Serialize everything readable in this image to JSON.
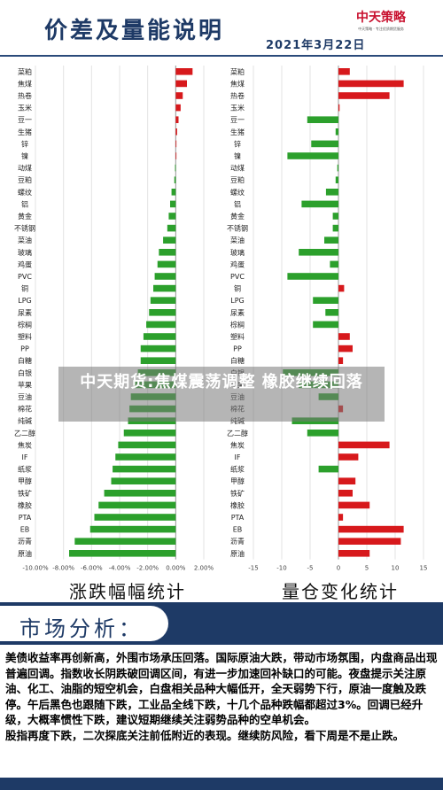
{
  "header": {
    "title": "价差及量能说明",
    "date": "2021年3月22日",
    "logo_text": "中天策略",
    "logo_sub": "中天策略 · 专注优质期货服务"
  },
  "colors": {
    "up": "#d7191c",
    "down": "#2ca02c",
    "brand": "#1e3a66"
  },
  "chart_data": [
    {
      "type": "bar",
      "orientation": "horizontal",
      "caption": "涨跌幅幅统计",
      "categories": [
        "菜粕",
        "焦煤",
        "热卷",
        "玉米",
        "豆一",
        "生猪",
        "锌",
        "镍",
        "动煤",
        "豆粕",
        "螺纹",
        "铝",
        "黄金",
        "不锈钢",
        "菜油",
        "玻璃",
        "鸡蛋",
        "PVC",
        "铜",
        "LPG",
        "尿素",
        "棕榈",
        "塑料",
        "PP",
        "白糖",
        "白银",
        "苹果",
        "豆油",
        "棉花",
        "纯碱",
        "乙二醇",
        "焦炭",
        "IF",
        "纸浆",
        "甲醇",
        "铁矿",
        "橡胶",
        "PTA",
        "EB",
        "沥青",
        "原油"
      ],
      "values": [
        1.2,
        0.8,
        0.5,
        0.35,
        0.2,
        0.1,
        0.05,
        0.0,
        -0.05,
        -0.1,
        -0.3,
        -0.4,
        -0.5,
        -0.6,
        -0.9,
        -1.2,
        -1.3,
        -1.5,
        -1.6,
        -1.8,
        -1.9,
        -2.1,
        -2.3,
        -2.5,
        -2.5,
        -2.7,
        -2.9,
        -3.2,
        -3.3,
        -3.4,
        -3.7,
        -4.1,
        -4.3,
        -4.5,
        -4.6,
        -5.1,
        -5.5,
        -5.8,
        -6.1,
        -7.2,
        -7.6
      ],
      "xlim": [
        -10,
        2
      ],
      "xticks": [
        "-10.00%",
        "-8.00%",
        "-6.00%",
        "-4.00%",
        "-2.00%",
        "0.00%",
        "2.00%"
      ],
      "xtick_values": [
        -10,
        -8,
        -6,
        -4,
        -2,
        0,
        2
      ]
    },
    {
      "type": "bar",
      "orientation": "horizontal",
      "caption": "量仓变化统计",
      "categories": [
        "菜粕",
        "焦煤",
        "热卷",
        "玉米",
        "豆一",
        "生猪",
        "锌",
        "镍",
        "动煤",
        "豆粕",
        "螺纹",
        "铝",
        "黄金",
        "不锈钢",
        "菜油",
        "玻璃",
        "鸡蛋",
        "PVC",
        "铜",
        "LPG",
        "尿素",
        "棕榈",
        "塑料",
        "PP",
        "白糖",
        "白银",
        "苹果",
        "豆油",
        "棉花",
        "纯碱",
        "乙二醇",
        "焦炭",
        "IF",
        "纸浆",
        "甲醇",
        "铁矿",
        "橡胶",
        "PTA",
        "EB",
        "沥青",
        "原油"
      ],
      "values": [
        2.0,
        11.5,
        9.0,
        0.2,
        -5.5,
        -0.5,
        -4.8,
        -9.0,
        -0.2,
        -0.5,
        -2.2,
        -6.5,
        -1.0,
        -1.0,
        -2.5,
        -7.0,
        -1.5,
        -9.0,
        1.0,
        -4.5,
        -2.3,
        -4.5,
        2.0,
        2.5,
        0.8,
        -9.8,
        -7.0,
        -3.5,
        0.8,
        -8.2,
        -5.5,
        9.0,
        3.5,
        -3.5,
        3.0,
        2.5,
        5.5,
        0.8,
        11.5,
        11.0,
        5.5
      ],
      "xlim": [
        -15,
        15
      ],
      "xticks": [
        "-15",
        "-10",
        "-5",
        "0",
        "5",
        "10",
        "15"
      ],
      "xtick_values": [
        -15,
        -10,
        -5,
        0,
        5,
        10,
        15
      ]
    }
  ],
  "section": {
    "title": "市场分析："
  },
  "analysis": {
    "para1": "美债收益率再创新高，外围市场承压回落。国际原油大跌，带动市场氛围，内盘商品出现普遍回调。指数收长阴跌破回调区间，有进一步加速回补缺口的可能。夜盘提示关注原油、化工、油脂的短空机会，白盘相关品种大幅低开，全天弱势下行，原油一度触及跌停。午后黑色也跟随下跌，工业品全线下跌，十几个品种跌幅都超过3%。回调已经升级，大概率惯性下跌，建议短期继续关注弱势品种的空单机会。",
    "para2": "股指再度下跌，二次探底关注前低附近的表现。继续防风险，看下周是不是止跌。"
  },
  "overlay": {
    "headline": "中天期货:焦煤震荡调整 橡胶继续回落"
  }
}
